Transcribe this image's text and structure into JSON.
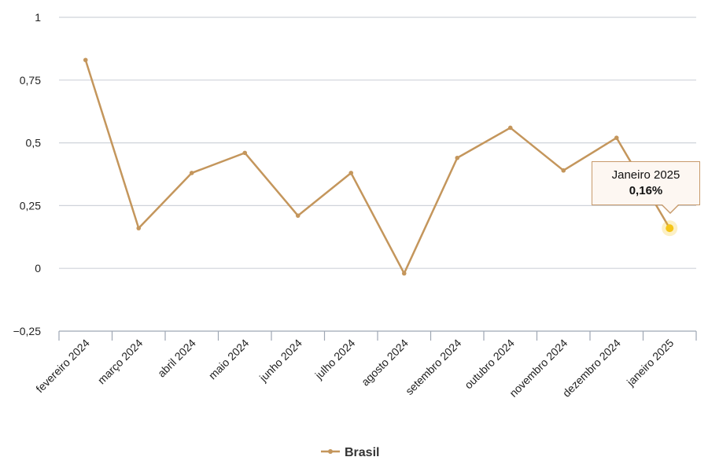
{
  "chart_data": {
    "type": "line",
    "categories": [
      "fevereiro 2024",
      "março 2024",
      "abril 2024",
      "maio 2024",
      "junho 2024",
      "julho 2024",
      "agosto 2024",
      "setembro 2024",
      "outubro 2024",
      "novembro 2024",
      "dezembro 2024",
      "janeiro 2025"
    ],
    "series": [
      {
        "name": "Brasil",
        "values": [
          0.83,
          0.16,
          0.38,
          0.46,
          0.21,
          0.38,
          -0.02,
          0.44,
          0.56,
          0.39,
          0.52,
          0.16
        ]
      }
    ],
    "ylim": [
      -0.25,
      1
    ],
    "yticks": [
      1,
      0.75,
      0.5,
      0.25,
      0,
      -0.25
    ],
    "ytick_labels": [
      "1",
      "0,75",
      "0,5",
      "0,25",
      "0",
      "−0,25"
    ],
    "grid": true,
    "legend_position": "bottom-center",
    "colors": {
      "series": "#c4965c",
      "highlight": "#f5c518",
      "grid": "#cfd3da"
    },
    "tooltip": {
      "title": "Janeiro 2025",
      "value": "0,16%",
      "index": 11
    }
  }
}
